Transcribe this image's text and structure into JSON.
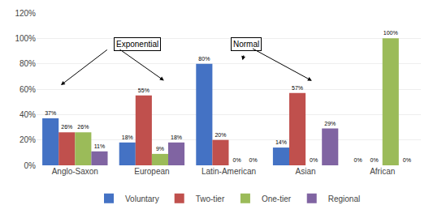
{
  "chart_data": {
    "type": "bar",
    "categories": [
      "Anglo-Saxon",
      "European",
      "Latin-American",
      "Asian",
      "African"
    ],
    "series": [
      {
        "name": "Voluntary",
        "color": "#4472C4",
        "values": [
          37,
          18,
          80,
          14,
          0
        ],
        "value_labels": [
          "37%",
          "18%",
          "80%",
          "14%",
          "0%"
        ]
      },
      {
        "name": "Two-tier",
        "color": "#C0504D",
        "values": [
          26,
          55,
          20,
          57,
          0
        ],
        "value_labels": [
          "26%",
          "55%",
          "20%",
          "57%",
          "0%"
        ]
      },
      {
        "name": "One-tier",
        "color": "#9BBB59",
        "values": [
          26,
          9,
          0,
          0,
          100
        ],
        "value_labels": [
          "26%",
          "9%",
          "0%",
          "0%",
          "100%"
        ]
      },
      {
        "name": "Regional",
        "color": "#8064A2",
        "values": [
          11,
          18,
          0,
          29,
          0
        ],
        "value_labels": [
          "11%",
          "18%",
          "0%",
          "29%",
          "0%"
        ]
      }
    ],
    "ylim": [
      0,
      120
    ],
    "yticks": [
      {
        "value": 0,
        "label": "0%"
      },
      {
        "value": 20,
        "label": "20%"
      },
      {
        "value": 40,
        "label": "40%"
      },
      {
        "value": 60,
        "label": "60%"
      },
      {
        "value": 80,
        "label": "80%"
      },
      {
        "value": 100,
        "label": "100%"
      },
      {
        "value": 120,
        "label": "120%"
      }
    ],
    "grid": true,
    "legend": "bottom",
    "data_labels": true,
    "annotations": [
      "Exponential",
      "Normal"
    ]
  }
}
